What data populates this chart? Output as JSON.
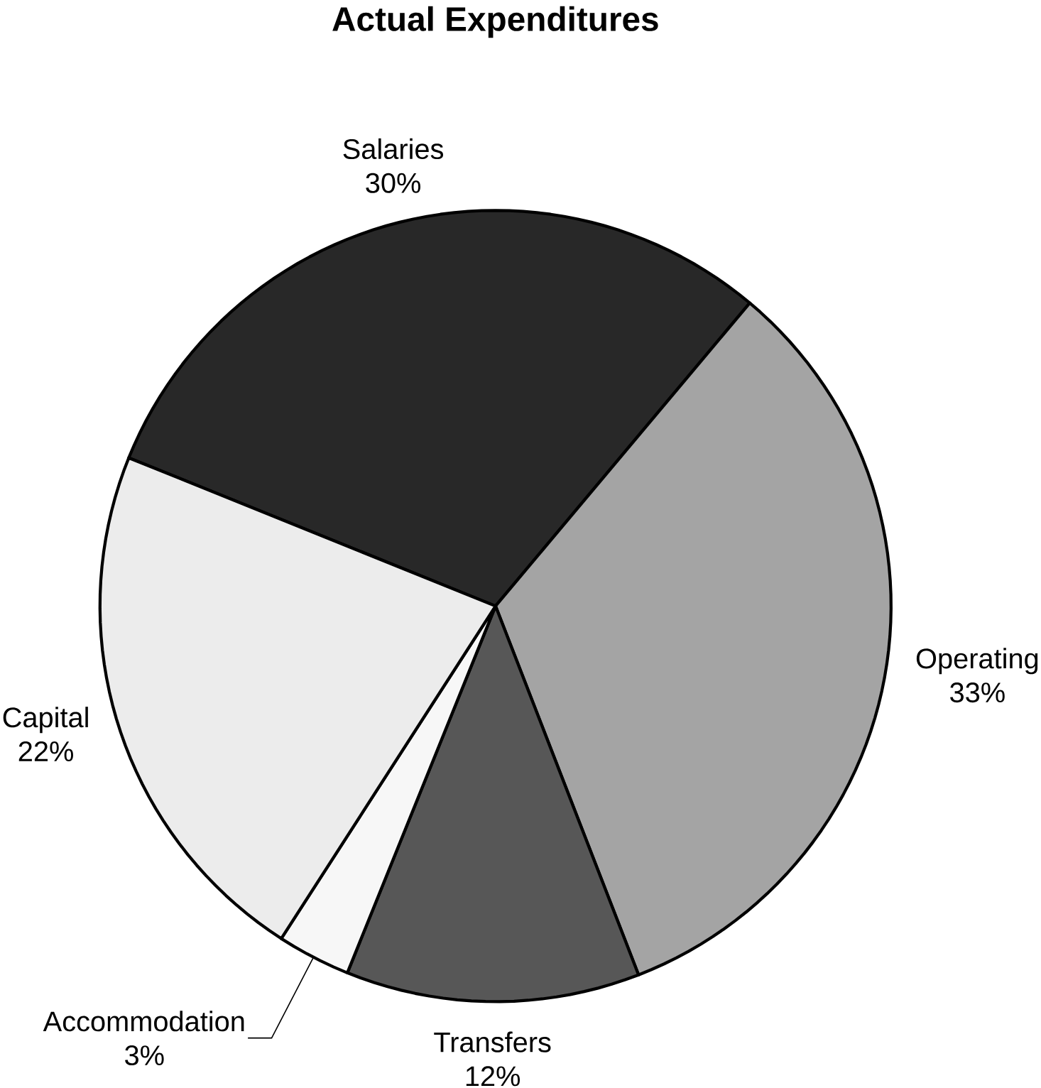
{
  "chart_data": {
    "type": "pie",
    "title": "Actual Expenditures",
    "categories": [
      "Salaries",
      "Operating",
      "Transfers",
      "Accommodation",
      "Capital"
    ],
    "values": [
      30,
      33,
      12,
      3,
      22
    ],
    "value_labels": [
      "30%",
      "33%",
      "12%",
      "3%",
      "22%"
    ],
    "colors": [
      "#282828",
      "#a4a4a4",
      "#575757",
      "#f7f7f7",
      "#ececec"
    ]
  }
}
